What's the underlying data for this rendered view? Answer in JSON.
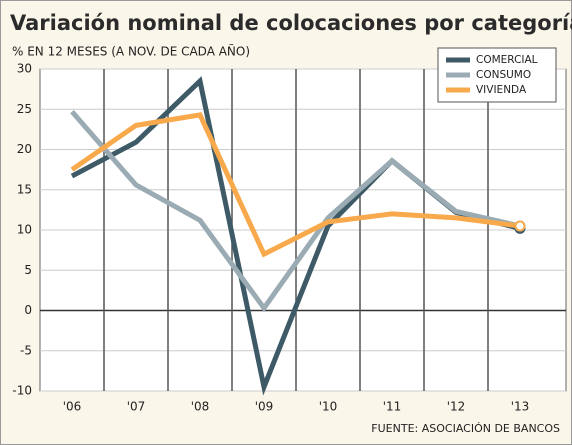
{
  "chart_data": {
    "type": "line",
    "title": "Variación nominal de colocaciones por categoría",
    "subtitle": "% EN 12 MESES (A NOV. DE CADA AÑO)",
    "source": "FUENTE: ASOCIACIÓN DE BANCOS",
    "categories": [
      "'06",
      "'07",
      "'08",
      "'09",
      "'10",
      "'11",
      "'12",
      "'13"
    ],
    "series": [
      {
        "name": "COMERCIAL",
        "color": "#3d5a66",
        "values": [
          16.7,
          20.9,
          28.5,
          -9.5,
          10.5,
          18.6,
          12.2,
          10.2
        ]
      },
      {
        "name": "CONSUMO",
        "color": "#9babb4",
        "values": [
          24.7,
          15.6,
          11.2,
          0.3,
          11.5,
          18.6,
          12.3,
          10.5
        ]
      },
      {
        "name": "VIVIENDA",
        "color": "#f8a94c",
        "values": [
          17.5,
          23.0,
          24.3,
          7.0,
          11.0,
          12.0,
          11.5,
          10.5
        ]
      }
    ],
    "ylim": [
      -10,
      30
    ],
    "yticks": [
      -10,
      -5,
      0,
      5,
      10,
      15,
      20,
      25,
      30
    ],
    "grid": true
  }
}
